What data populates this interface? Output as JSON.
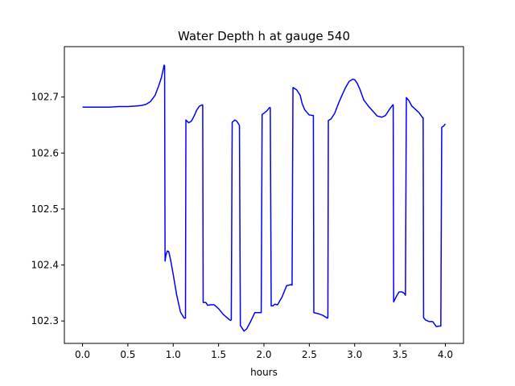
{
  "chart_data": {
    "type": "line",
    "title": "Water Depth h at gauge 540",
    "xlabel": "hours",
    "ylabel": "",
    "xlim": [
      -0.2,
      4.2
    ],
    "ylim": [
      102.26,
      102.79
    ],
    "xticks": [
      0.0,
      0.5,
      1.0,
      1.5,
      2.0,
      2.5,
      3.0,
      3.5,
      4.0
    ],
    "xtick_labels": [
      "0.0",
      "0.5",
      "1.0",
      "1.5",
      "2.0",
      "2.5",
      "3.0",
      "3.5",
      "4.0"
    ],
    "yticks": [
      102.3,
      102.4,
      102.5,
      102.6,
      102.7
    ],
    "ytick_labels": [
      "102.3",
      "102.4",
      "102.5",
      "102.6",
      "102.7"
    ],
    "grid": false,
    "series": [
      {
        "color": "#0000ff",
        "x": [
          0.0,
          0.1,
          0.2,
          0.3,
          0.4,
          0.5,
          0.6,
          0.65,
          0.7,
          0.75,
          0.8,
          0.84,
          0.87,
          0.9,
          0.905,
          0.91,
          0.92,
          0.935,
          0.95,
          0.97,
          1.0,
          1.04,
          1.08,
          1.12,
          1.135,
          1.14,
          1.17,
          1.2,
          1.23,
          1.26,
          1.29,
          1.32,
          1.325,
          1.33,
          1.36,
          1.38,
          1.41,
          1.45,
          1.5,
          1.55,
          1.6,
          1.63,
          1.64,
          1.65,
          1.68,
          1.7,
          1.72,
          1.73,
          1.74,
          1.78,
          1.81,
          1.85,
          1.9,
          1.97,
          1.98,
          2.0,
          2.03,
          2.06,
          2.07,
          2.08,
          2.1,
          2.12,
          2.15,
          2.2,
          2.25,
          2.3,
          2.31,
          2.32,
          2.36,
          2.4,
          2.42,
          2.45,
          2.5,
          2.54,
          2.545,
          2.55,
          2.6,
          2.65,
          2.7,
          2.705,
          2.71,
          2.74,
          2.78,
          2.82,
          2.86,
          2.9,
          2.94,
          2.98,
          3.0,
          3.03,
          3.06,
          3.1,
          3.15,
          3.2,
          3.25,
          3.3,
          3.34,
          3.38,
          3.42,
          3.425,
          3.43,
          3.46,
          3.49,
          3.52,
          3.55,
          3.56,
          3.57,
          3.6,
          3.63,
          3.67,
          3.71,
          3.75,
          3.755,
          3.76,
          3.78,
          3.82,
          3.86,
          3.9,
          3.94,
          3.95,
          3.96,
          3.98,
          4.0
        ],
        "y": [
          102.682,
          102.682,
          102.682,
          102.682,
          102.683,
          102.683,
          102.684,
          102.685,
          102.687,
          102.692,
          102.703,
          102.72,
          102.735,
          102.757,
          102.756,
          102.407,
          102.418,
          102.425,
          102.424,
          102.41,
          102.383,
          102.345,
          102.316,
          102.305,
          102.305,
          102.659,
          102.654,
          102.657,
          102.666,
          102.677,
          102.684,
          102.686,
          102.686,
          102.333,
          102.333,
          102.328,
          102.329,
          102.329,
          102.322,
          102.312,
          102.305,
          102.301,
          102.302,
          102.655,
          102.659,
          102.657,
          102.652,
          102.649,
          102.292,
          102.282,
          102.286,
          102.298,
          102.315,
          102.315,
          102.669,
          102.671,
          102.675,
          102.681,
          102.681,
          102.327,
          102.327,
          102.33,
          102.329,
          102.343,
          102.363,
          102.365,
          102.364,
          102.717,
          102.713,
          102.703,
          102.689,
          102.677,
          102.668,
          102.667,
          102.667,
          102.315,
          102.313,
          102.31,
          102.305,
          102.306,
          102.658,
          102.661,
          102.671,
          102.688,
          102.703,
          102.717,
          102.728,
          102.732,
          102.731,
          102.724,
          102.713,
          102.695,
          102.684,
          102.675,
          102.666,
          102.664,
          102.667,
          102.677,
          102.686,
          102.686,
          102.334,
          102.344,
          102.352,
          102.352,
          102.349,
          102.346,
          102.699,
          102.693,
          102.684,
          102.678,
          102.672,
          102.663,
          102.663,
          102.306,
          102.302,
          102.299,
          102.299,
          102.29,
          102.291,
          102.291,
          102.646,
          102.648,
          102.652
        ]
      }
    ]
  }
}
